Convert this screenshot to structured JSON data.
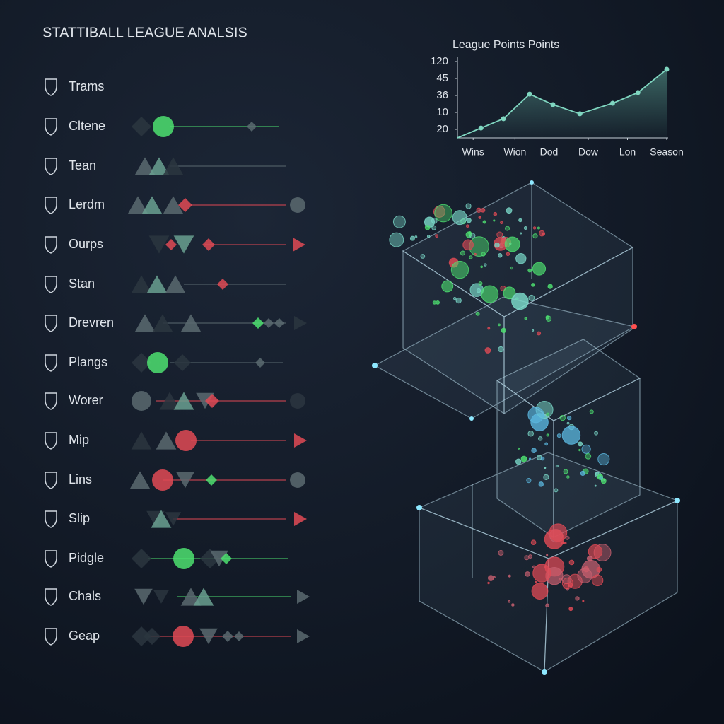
{
  "header": {
    "title": "STATTIBALL LEAGUE ANALSIS"
  },
  "teams": [
    "Trams",
    "Cltene",
    "Tean",
    "Lerdm",
    "Ourps",
    "Stan",
    "Drevren",
    "Plangs",
    "Worer",
    "Mip",
    "Lins",
    "Slip",
    "Pidgle",
    "Chals",
    "Geap"
  ],
  "chart_data": {
    "type": "line",
    "title": "League Points Points",
    "x": [
      0,
      0.9,
      1.76,
      2.76,
      3.65,
      4.68,
      5.93,
      6.9,
      8
    ],
    "xlim": [
      0,
      8
    ],
    "xticks": [
      {
        "value": 0.6,
        "label": "Wins"
      },
      {
        "value": 2.2,
        "label": "Wion"
      },
      {
        "value": 3.5,
        "label": "Dod"
      },
      {
        "value": 5.0,
        "label": "Dow"
      },
      {
        "value": 6.5,
        "label": "Lon"
      },
      {
        "value": 8.0,
        "label": "Season"
      }
    ],
    "ylim": [
      0,
      4.5
    ],
    "yticks": [
      {
        "value": 0.5,
        "label": "20"
      },
      {
        "value": 1.5,
        "label": "10"
      },
      {
        "value": 2.5,
        "label": "36"
      },
      {
        "value": 3.5,
        "label": "45"
      },
      {
        "value": 4.5,
        "label": "120"
      }
    ],
    "series": [
      {
        "color": "#7fd6c0",
        "values": [
          0,
          0.58,
          1.13,
          2.58,
          1.96,
          1.42,
          2.04,
          2.67,
          4.04
        ]
      }
    ]
  }
}
